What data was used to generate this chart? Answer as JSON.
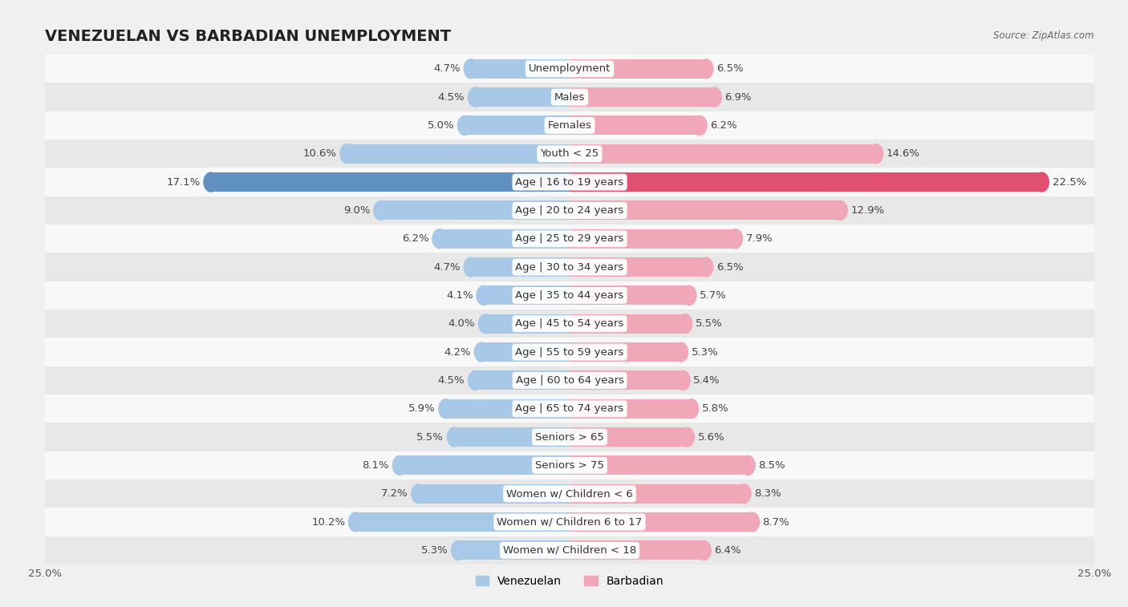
{
  "title": "VENEZUELAN VS BARBADIAN UNEMPLOYMENT",
  "source": "Source: ZipAtlas.com",
  "categories": [
    "Unemployment",
    "Males",
    "Females",
    "Youth < 25",
    "Age | 16 to 19 years",
    "Age | 20 to 24 years",
    "Age | 25 to 29 years",
    "Age | 30 to 34 years",
    "Age | 35 to 44 years",
    "Age | 45 to 54 years",
    "Age | 55 to 59 years",
    "Age | 60 to 64 years",
    "Age | 65 to 74 years",
    "Seniors > 65",
    "Seniors > 75",
    "Women w/ Children < 6",
    "Women w/ Children 6 to 17",
    "Women w/ Children < 18"
  ],
  "venezuelan": [
    4.7,
    4.5,
    5.0,
    10.6,
    17.1,
    9.0,
    6.2,
    4.7,
    4.1,
    4.0,
    4.2,
    4.5,
    5.9,
    5.5,
    8.1,
    7.2,
    10.2,
    5.3
  ],
  "barbadian": [
    6.5,
    6.9,
    6.2,
    14.6,
    22.5,
    12.9,
    7.9,
    6.5,
    5.7,
    5.5,
    5.3,
    5.4,
    5.8,
    5.6,
    8.5,
    8.3,
    8.7,
    6.4
  ],
  "venezuelan_color": "#a8c8e8",
  "barbadian_color": "#f0a8b8",
  "venezuelan_color_highlight": "#6090c0",
  "barbadian_color_highlight": "#e05070",
  "bg_color": "#f0f0f0",
  "row_bg_light": "#f8f8f8",
  "row_bg_dark": "#e8e8e8",
  "highlight_row": 4,
  "x_max": 25.0,
  "legend_labels": [
    "Venezuelan",
    "Barbadian"
  ],
  "title_fontsize": 14,
  "label_fontsize": 9.5,
  "value_fontsize": 9.5
}
